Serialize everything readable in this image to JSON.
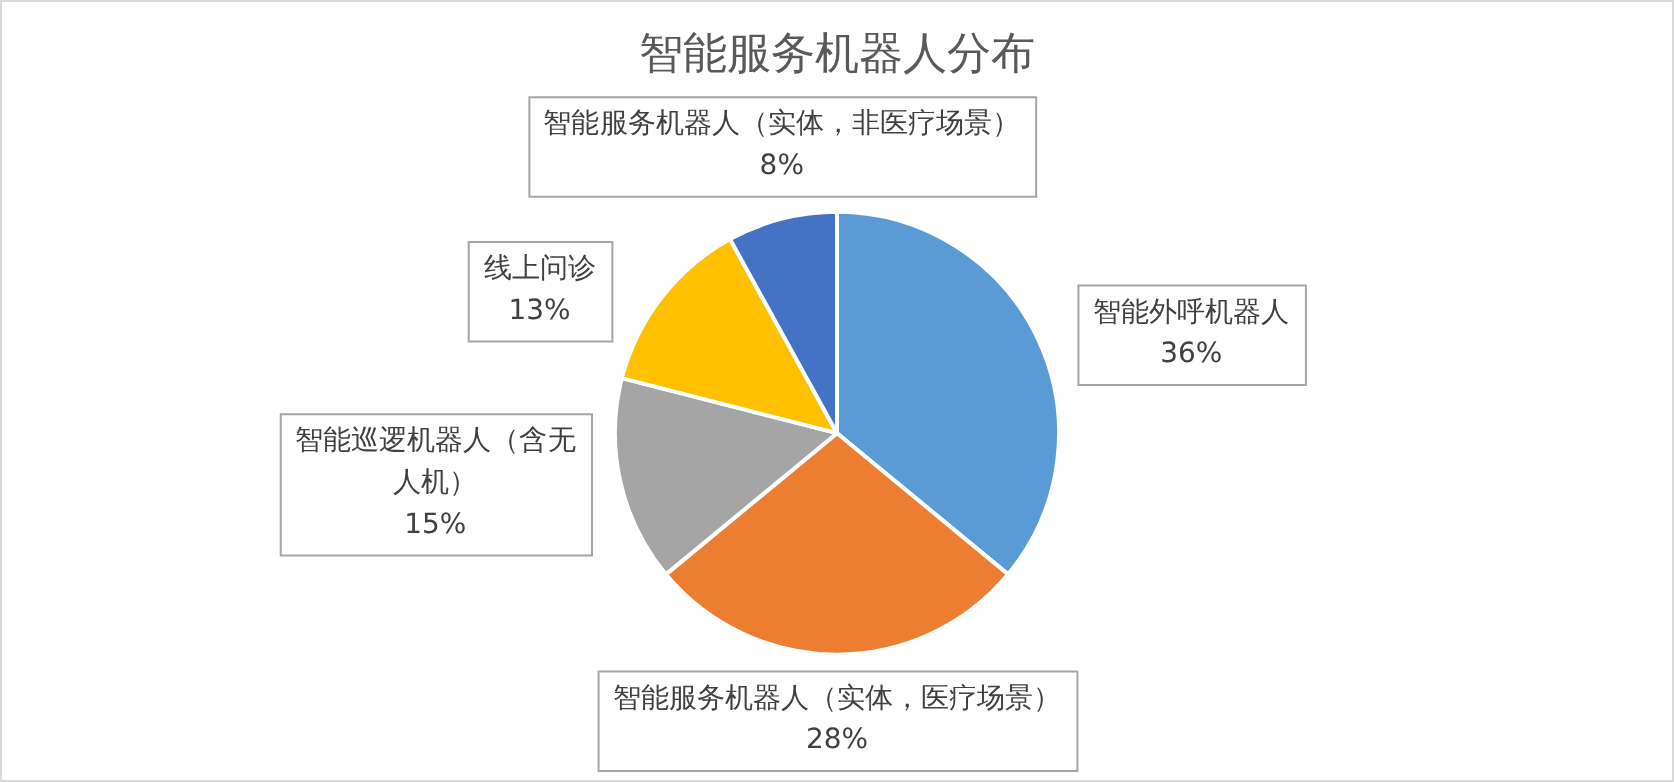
{
  "chart_data": {
    "type": "pie",
    "title": "智能服务机器人分布",
    "categories": [
      "智能外呼机器人",
      "智能服务机器人（实体，医疗场景）",
      "智能巡逻机器人（含无人机）",
      "线上问诊",
      "智能服务机器人（实体，非医疗场景）"
    ],
    "values": [
      36,
      28,
      15,
      13,
      8
    ],
    "value_labels": [
      "36%",
      "28%",
      "15%",
      "13%",
      "8%"
    ],
    "colors": [
      "#5b9bd5",
      "#ed7d31",
      "#a5a5a5",
      "#ffc000",
      "#4472c4"
    ],
    "legend": false
  }
}
